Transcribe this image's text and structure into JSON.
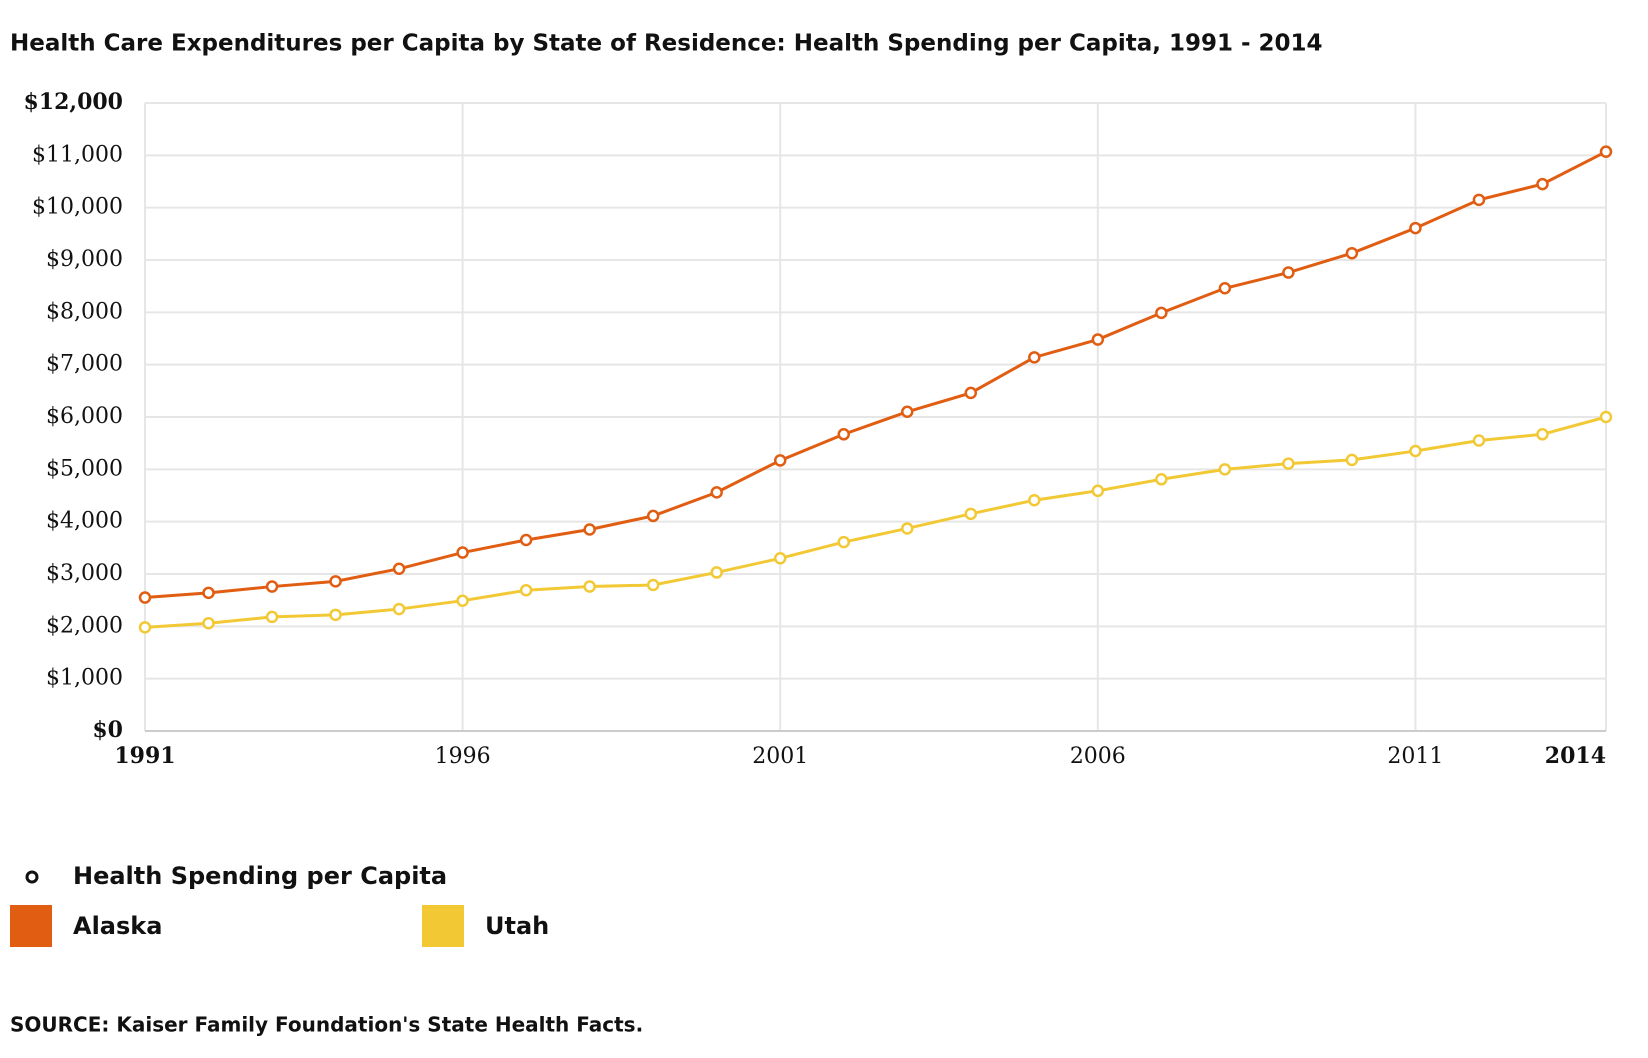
{
  "chart_data": {
    "type": "line",
    "title": "Health Care Expenditures per Capita by State of Residence: Health Spending per Capita, 1991 - 2014",
    "legend_title": "Health Spending per Capita",
    "source": "SOURCE: Kaiser Family Foundation's State Health Facts.",
    "x": [
      1991,
      1992,
      1993,
      1994,
      1995,
      1996,
      1997,
      1998,
      1999,
      2000,
      2001,
      2002,
      2003,
      2004,
      2005,
      2006,
      2007,
      2008,
      2009,
      2010,
      2011,
      2012,
      2013,
      2014
    ],
    "series": [
      {
        "name": "Alaska",
        "color": "#e05d12",
        "values": [
          2550,
          2640,
          2760,
          2860,
          3100,
          3410,
          3650,
          3850,
          4110,
          4560,
          5170,
          5670,
          6100,
          6460,
          7140,
          7480,
          7990,
          8460,
          8760,
          9130,
          9610,
          10150,
          10450,
          11070
        ]
      },
      {
        "name": "Utah",
        "color": "#f2c935",
        "values": [
          1980,
          2060,
          2180,
          2220,
          2330,
          2490,
          2690,
          2760,
          2790,
          3030,
          3300,
          3610,
          3870,
          4150,
          4410,
          4590,
          4810,
          5000,
          5110,
          5180,
          5350,
          5550,
          5670,
          6000
        ]
      }
    ],
    "xlim": [
      1991,
      2014
    ],
    "xticks": [
      1991,
      1996,
      2001,
      2006,
      2011,
      2014
    ],
    "ylim": [
      0,
      12000
    ],
    "yticks": [
      {
        "value": 0,
        "label": "$0"
      },
      {
        "value": 1000,
        "label": "$1,000"
      },
      {
        "value": 2000,
        "label": "$2,000"
      },
      {
        "value": 3000,
        "label": "$3,000"
      },
      {
        "value": 4000,
        "label": "$4,000"
      },
      {
        "value": 5000,
        "label": "$5,000"
      },
      {
        "value": 6000,
        "label": "$6,000"
      },
      {
        "value": 7000,
        "label": "$7,000"
      },
      {
        "value": 8000,
        "label": "$8,000"
      },
      {
        "value": 9000,
        "label": "$9,000"
      },
      {
        "value": 10000,
        "label": "$10,000"
      },
      {
        "value": 11000,
        "label": "$11,000"
      },
      {
        "value": 12000,
        "label": "$12,000"
      }
    ],
    "grid": true
  }
}
